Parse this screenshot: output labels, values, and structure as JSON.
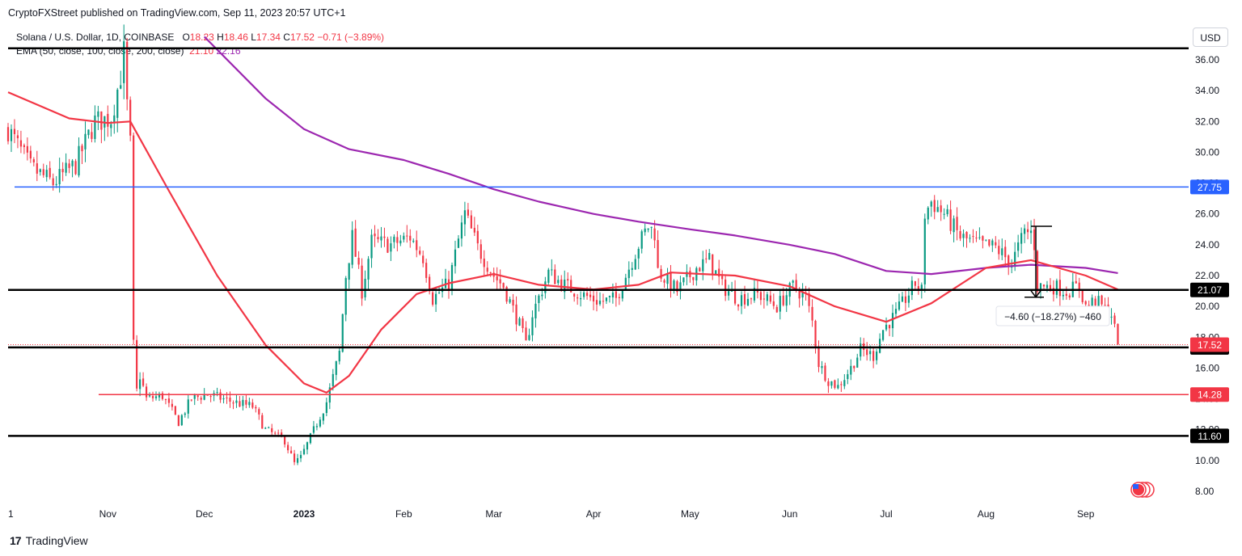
{
  "header": {
    "publisher": "CryptoFXStreet published on TradingView.com, Sep 11, 2023 20:57 UTC+1"
  },
  "legend": {
    "symbol": "Solana / U.S. Dollar, 1D, COINBASE",
    "o_label": "O",
    "o": "18.23",
    "h_label": "H",
    "h": "18.46",
    "l_label": "L",
    "l": "17.34",
    "c_label": "C",
    "c": "17.52",
    "change": "−0.71 (−3.89%)",
    "ema_label": "EMA (50, close, 100, close, 200, close)",
    "ema_50": "21.10",
    "ema_200": "22.16"
  },
  "currency_button": "USD",
  "footer": {
    "logo": "17",
    "brand": "TradingView"
  },
  "chart_data": {
    "type": "candlestick",
    "symbol": "SOL/USD",
    "timeframe": "1D",
    "y_axis": {
      "ticks": [
        "8.00",
        "10.00",
        "12.00",
        "14.00",
        "16.00",
        "18.00",
        "20.00",
        "22.00",
        "24.00",
        "26.00",
        "28.00",
        "30.00",
        "32.00",
        "34.00",
        "36.00"
      ],
      "ylim": [
        7.0,
        37.5
      ]
    },
    "x_axis": {
      "ticks": [
        "1",
        "Nov",
        "Dec",
        "2023",
        "Feb",
        "Mar",
        "Apr",
        "May",
        "Jun",
        "Jul",
        "Aug",
        "Sep"
      ],
      "range": [
        "2022-10-01",
        "2023-10-03"
      ]
    },
    "price_anchors": [
      [
        "2022-10-01",
        31.5
      ],
      [
        "2022-10-08",
        29.0
      ],
      [
        "2022-10-15",
        28.0
      ],
      [
        "2022-10-22",
        29.2
      ],
      [
        "2022-10-28",
        32.0
      ],
      [
        "2022-11-02",
        32.2
      ],
      [
        "2022-11-05",
        35.0
      ],
      [
        "2022-11-06",
        36.5
      ],
      [
        "2022-11-07",
        33.0
      ],
      [
        "2022-11-08",
        30.5
      ],
      [
        "2022-11-09",
        17.5
      ],
      [
        "2022-11-10",
        14.5
      ],
      [
        "2022-11-11",
        15.5
      ],
      [
        "2022-11-13",
        14.0
      ],
      [
        "2022-11-18",
        14.2
      ],
      [
        "2022-11-23",
        12.5
      ],
      [
        "2022-11-27",
        14.0
      ],
      [
        "2022-12-02",
        14.3
      ],
      [
        "2022-12-10",
        13.8
      ],
      [
        "2022-12-16",
        13.5
      ],
      [
        "2022-12-20",
        12.0
      ],
      [
        "2022-12-26",
        11.3
      ],
      [
        "2022-12-29",
        9.8
      ],
      [
        "2022-12-31",
        10.2
      ],
      [
        "2023-01-03",
        11.5
      ],
      [
        "2023-01-08",
        13.8
      ],
      [
        "2023-01-12",
        17.0
      ],
      [
        "2023-01-14",
        22.0
      ],
      [
        "2023-01-16",
        24.5
      ],
      [
        "2023-01-19",
        21.0
      ],
      [
        "2023-01-22",
        24.2
      ],
      [
        "2023-01-28",
        24.0
      ],
      [
        "2023-02-03",
        24.5
      ],
      [
        "2023-02-07",
        23.2
      ],
      [
        "2023-02-10",
        20.5
      ],
      [
        "2023-02-15",
        21.5
      ],
      [
        "2023-02-18",
        24.3
      ],
      [
        "2023-02-20",
        26.0
      ],
      [
        "2023-02-24",
        23.8
      ],
      [
        "2023-03-01",
        22.0
      ],
      [
        "2023-03-04",
        21.3
      ],
      [
        "2023-03-09",
        18.8
      ],
      [
        "2023-03-11",
        17.5
      ],
      [
        "2023-03-13",
        19.5
      ],
      [
        "2023-03-18",
        22.2
      ],
      [
        "2023-03-22",
        21.5
      ],
      [
        "2023-03-28",
        20.8
      ],
      [
        "2023-04-03",
        20.3
      ],
      [
        "2023-04-08",
        20.5
      ],
      [
        "2023-04-11",
        22.0
      ],
      [
        "2023-04-15",
        24.0
      ],
      [
        "2023-04-18",
        25.2
      ],
      [
        "2023-04-20",
        24.8
      ],
      [
        "2023-04-21",
        22.3
      ],
      [
        "2023-04-27",
        21.0
      ],
      [
        "2023-05-03",
        22.5
      ],
      [
        "2023-05-07",
        23.0
      ],
      [
        "2023-05-11",
        21.3
      ],
      [
        "2023-05-16",
        20.5
      ],
      [
        "2023-05-22",
        20.8
      ],
      [
        "2023-05-28",
        20.0
      ],
      [
        "2023-06-02",
        21.3
      ],
      [
        "2023-06-06",
        20.6
      ],
      [
        "2023-06-08",
        19.0
      ],
      [
        "2023-06-10",
        16.3
      ],
      [
        "2023-06-13",
        15.2
      ],
      [
        "2023-06-16",
        14.8
      ],
      [
        "2023-06-20",
        16.0
      ],
      [
        "2023-06-23",
        17.2
      ],
      [
        "2023-06-27",
        16.8
      ],
      [
        "2023-06-30",
        18.5
      ],
      [
        "2023-07-04",
        19.5
      ],
      [
        "2023-07-10",
        21.5
      ],
      [
        "2023-07-12",
        21.0
      ],
      [
        "2023-07-13",
        26.0
      ],
      [
        "2023-07-15",
        26.8
      ],
      [
        "2023-07-19",
        26.0
      ],
      [
        "2023-07-24",
        24.5
      ],
      [
        "2023-07-30",
        24.0
      ],
      [
        "2023-08-04",
        23.8
      ],
      [
        "2023-08-09",
        22.8
      ],
      [
        "2023-08-13",
        24.8
      ],
      [
        "2023-08-15",
        24.8
      ],
      [
        "2023-08-16",
        24.0
      ],
      [
        "2023-08-17",
        21.3
      ],
      [
        "2023-08-22",
        21.3
      ],
      [
        "2023-08-26",
        21.0
      ],
      [
        "2023-08-30",
        21.3
      ],
      [
        "2023-09-01",
        20.0
      ],
      [
        "2023-09-04",
        20.4
      ],
      [
        "2023-09-07",
        19.8
      ],
      [
        "2023-09-09",
        19.5
      ],
      [
        "2023-09-11",
        17.52
      ]
    ],
    "ema_50": [
      [
        "2022-10-01",
        33.9
      ],
      [
        "2022-10-20",
        32.2
      ],
      [
        "2022-11-01",
        31.9
      ],
      [
        "2022-11-08",
        32.0
      ],
      [
        "2022-11-20",
        27.5
      ],
      [
        "2022-12-05",
        22.0
      ],
      [
        "2022-12-20",
        17.5
      ],
      [
        "2023-01-01",
        15.0
      ],
      [
        "2023-01-08",
        14.4
      ],
      [
        "2023-01-15",
        15.5
      ],
      [
        "2023-01-25",
        18.5
      ],
      [
        "2023-02-05",
        20.8
      ],
      [
        "2023-02-15",
        21.5
      ],
      [
        "2023-03-01",
        22.1
      ],
      [
        "2023-03-15",
        21.4
      ],
      [
        "2023-04-01",
        21.1
      ],
      [
        "2023-04-15",
        21.4
      ],
      [
        "2023-04-25",
        22.2
      ],
      [
        "2023-05-15",
        22.0
      ],
      [
        "2023-06-01",
        21.3
      ],
      [
        "2023-06-15",
        20.0
      ],
      [
        "2023-07-01",
        19.0
      ],
      [
        "2023-07-15",
        20.2
      ],
      [
        "2023-08-01",
        22.5
      ],
      [
        "2023-08-15",
        23.0
      ],
      [
        "2023-09-01",
        22.0
      ],
      [
        "2023-09-11",
        21.1
      ]
    ],
    "ema_200": [
      [
        "2022-12-01",
        37.5
      ],
      [
        "2022-12-20",
        33.5
      ],
      [
        "2023-01-01",
        31.5
      ],
      [
        "2023-01-15",
        30.2
      ],
      [
        "2023-02-01",
        29.5
      ],
      [
        "2023-02-15",
        28.6
      ],
      [
        "2023-03-01",
        27.6
      ],
      [
        "2023-03-15",
        26.8
      ],
      [
        "2023-04-01",
        26.0
      ],
      [
        "2023-04-15",
        25.5
      ],
      [
        "2023-05-01",
        25.0
      ],
      [
        "2023-05-15",
        24.6
      ],
      [
        "2023-06-01",
        24.0
      ],
      [
        "2023-06-15",
        23.4
      ],
      [
        "2023-07-01",
        22.3
      ],
      [
        "2023-07-15",
        22.1
      ],
      [
        "2023-08-01",
        22.5
      ],
      [
        "2023-08-15",
        22.7
      ],
      [
        "2023-09-01",
        22.5
      ],
      [
        "2023-09-11",
        22.16
      ]
    ],
    "horizontal_levels": [
      {
        "price": 36.75,
        "color": "#000000",
        "label": ""
      },
      {
        "price": 27.75,
        "color": "#2962ff",
        "label": "27.75"
      },
      {
        "price": 21.07,
        "color": "#000000",
        "label": "21.07"
      },
      {
        "price": 17.34,
        "color": "#000000",
        "label": "17.34"
      },
      {
        "price": 14.28,
        "color": "#f23645",
        "label": "14.28"
      },
      {
        "price": 11.6,
        "color": "#000000",
        "label": "11.60"
      }
    ],
    "last_price": {
      "price": 17.52,
      "label": "17.52",
      "color": "#f23645"
    },
    "measure": {
      "from_date": "2023-08-15",
      "to_date": "2023-08-18",
      "from_price": 25.2,
      "to_price": 20.6,
      "label": "−4.60 (−18.27%) −460"
    },
    "colors": {
      "up": "#089981",
      "down": "#f23645",
      "ema_50": "#f23645",
      "ema_200": "#9c27b0"
    }
  }
}
